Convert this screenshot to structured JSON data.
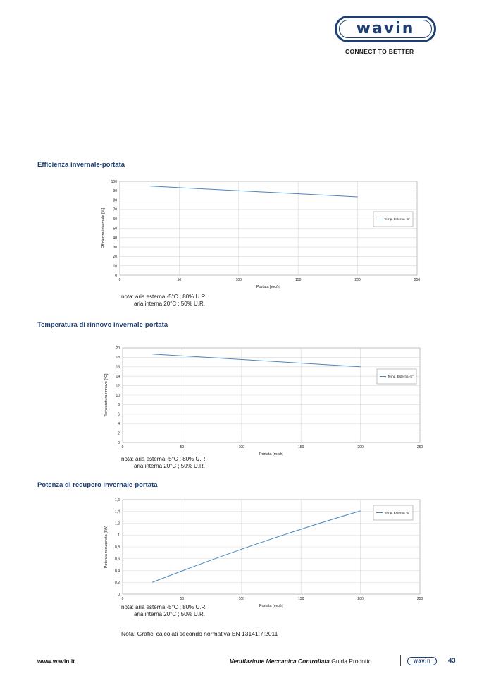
{
  "header": {
    "logo_text": "wavin",
    "tagline": "CONNECT TO BETTER"
  },
  "sections": [
    {
      "title": "Efficienza invernale-portata",
      "note_line1": "nota: aria esterna -5°C ; 80% U.R.",
      "note_line2": "aria interna 20°C ; 50% U.R."
    },
    {
      "title": "Temperatura di rinnovo invernale-portata",
      "note_line1": "nota: aria esterna -5°C ; 80% U.R.",
      "note_line2": "aria interna 20°C ; 50% U.R."
    },
    {
      "title": "Potenza di recupero invernale-portata",
      "note_line1": "nota: aria esterna -5°C ; 80% U.R.",
      "note_line2": "aria interna 20°C ; 50% U.R."
    }
  ],
  "footnote": "Nota: Grafici calcolati secondo normativa EN 13141:7:2011",
  "footer": {
    "url": "www.wavin.it",
    "title_bold": "Ventilazione Meccanica Controllata",
    "title_rest": "Guida Prodotto",
    "logo_text": "wavin",
    "page_number": "43"
  },
  "colors": {
    "brand": "#1d3f73",
    "series": "#4a86c0",
    "grid": "#d9d9d9"
  },
  "chart_data": [
    {
      "type": "line",
      "xlabel": "Portata [mc/h]",
      "ylabel": "Efficienza invernale [%]",
      "xlim": [
        0,
        250
      ],
      "ylim": [
        0,
        100
      ],
      "xticks": [
        0,
        50,
        100,
        150,
        200,
        250
      ],
      "xtick_labels": [
        "0",
        "50",
        "100",
        "150",
        "200",
        "250"
      ],
      "yticks": [
        0,
        10,
        20,
        30,
        40,
        50,
        60,
        70,
        80,
        90,
        100
      ],
      "ytick_labels": [
        "0",
        "10",
        "20",
        "30",
        "40",
        "50",
        "60",
        "70",
        "80",
        "90",
        "100"
      ],
      "grid": true,
      "legend_position": "right",
      "series": [
        {
          "name": "Temp. Esterna -5°",
          "x": [
            25,
            200
          ],
          "y": [
            95,
            83.5
          ]
        }
      ]
    },
    {
      "type": "line",
      "xlabel": "Portata [mc/h]",
      "ylabel": "Temperatura rinnovo [°C]",
      "xlim": [
        0,
        250
      ],
      "ylim": [
        0,
        20
      ],
      "xticks": [
        0,
        50,
        100,
        150,
        200,
        250
      ],
      "xtick_labels": [
        "0",
        "50",
        "100",
        "150",
        "200",
        "250"
      ],
      "yticks": [
        0,
        2,
        4,
        6,
        8,
        10,
        12,
        14,
        16,
        18,
        20
      ],
      "ytick_labels": [
        "0",
        "2",
        "4",
        "6",
        "8",
        "10",
        "12",
        "14",
        "16",
        "18",
        "20"
      ],
      "grid": true,
      "legend_position": "right",
      "series": [
        {
          "name": "Temp. Esterna -5°",
          "x": [
            25,
            200
          ],
          "y": [
            18.7,
            16
          ]
        }
      ]
    },
    {
      "type": "line",
      "xlabel": "Portata [mc/h]",
      "ylabel": "Potenza recuperata [kW]",
      "xlim": [
        0,
        250
      ],
      "ylim": [
        0,
        1.6
      ],
      "xticks": [
        0,
        50,
        100,
        150,
        200,
        250
      ],
      "xtick_labels": [
        "0",
        "50",
        "100",
        "150",
        "200",
        "250"
      ],
      "yticks": [
        0,
        0.2,
        0.4,
        0.6,
        0.8,
        1,
        1.2,
        1.4,
        1.6
      ],
      "ytick_labels": [
        "0",
        "0,2",
        "0,4",
        "0,6",
        "0,8",
        "1",
        "1,2",
        "1,4",
        "1,6"
      ],
      "grid": true,
      "legend_position": "top-right",
      "series": [
        {
          "name": "Temp. Esterna -5°",
          "x": [
            25,
            100,
            200
          ],
          "y": [
            0.2,
            0.76,
            1.41
          ]
        }
      ]
    }
  ]
}
